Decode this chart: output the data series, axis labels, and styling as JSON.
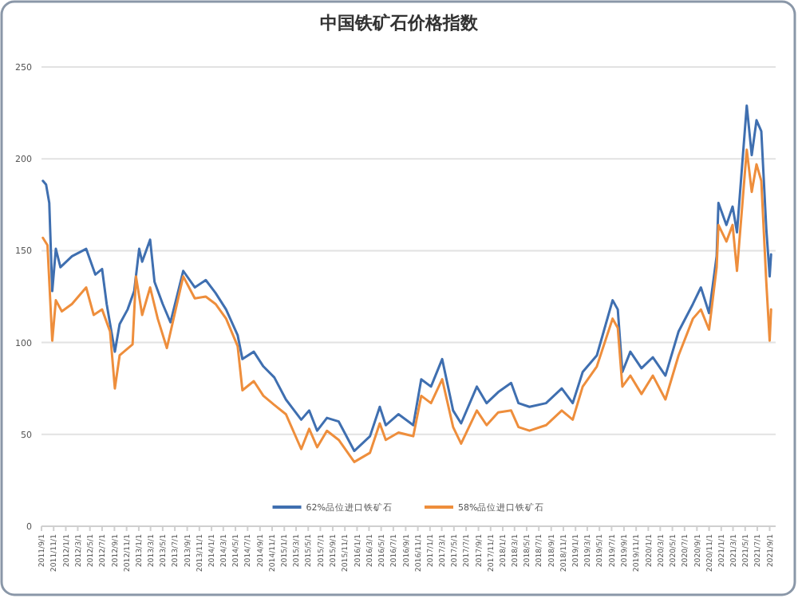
{
  "chart_data": {
    "type": "line",
    "title": "中国铁矿石价格指数",
    "legend": "bottom",
    "grid": "y",
    "marker": "none",
    "line_style": "solid",
    "ylim": [
      0,
      250
    ],
    "yticks": [
      0,
      50,
      100,
      150,
      200,
      250
    ],
    "xlim": [
      "2011-09-01",
      "2021-10-01"
    ],
    "xticks": [
      {
        "value": "2011-09-01",
        "label": "2011/9/1"
      },
      {
        "value": "2011-11-01",
        "label": "2011/11/1"
      },
      {
        "value": "2012-01-01",
        "label": "2012/1/1"
      },
      {
        "value": "2012-03-01",
        "label": "2012/3/1"
      },
      {
        "value": "2012-05-01",
        "label": "2012/5/1"
      },
      {
        "value": "2012-07-01",
        "label": "2012/7/1"
      },
      {
        "value": "2012-09-01",
        "label": "2012/9/1"
      },
      {
        "value": "2012-11-01",
        "label": "2012/11/1"
      },
      {
        "value": "2013-01-01",
        "label": "2013/1/1"
      },
      {
        "value": "2013-03-01",
        "label": "2013/3/1"
      },
      {
        "value": "2013-05-01",
        "label": "2013/5/1"
      },
      {
        "value": "2013-07-01",
        "label": "2013/7/1"
      },
      {
        "value": "2013-09-01",
        "label": "2013/9/1"
      },
      {
        "value": "2013-11-01",
        "label": "2013/11/1"
      },
      {
        "value": "2014-01-01",
        "label": "2014/1/1"
      },
      {
        "value": "2014-03-01",
        "label": "2014/3/1"
      },
      {
        "value": "2014-05-01",
        "label": "2014/5/1"
      },
      {
        "value": "2014-07-01",
        "label": "2014/7/1"
      },
      {
        "value": "2014-09-01",
        "label": "2014/9/1"
      },
      {
        "value": "2014-11-01",
        "label": "2014/11/1"
      },
      {
        "value": "2015-01-01",
        "label": "2015/1/1"
      },
      {
        "value": "2015-03-01",
        "label": "2015/3/1"
      },
      {
        "value": "2015-05-01",
        "label": "2015/5/1"
      },
      {
        "value": "2015-07-01",
        "label": "2015/7/1"
      },
      {
        "value": "2015-09-01",
        "label": "2015/9/1"
      },
      {
        "value": "2015-11-01",
        "label": "2015/11/1"
      },
      {
        "value": "2016-01-01",
        "label": "2016/1/1"
      },
      {
        "value": "2016-03-01",
        "label": "2016/3/1"
      },
      {
        "value": "2016-05-01",
        "label": "2016/5/1"
      },
      {
        "value": "2016-07-01",
        "label": "2016/7/1"
      },
      {
        "value": "2016-09-01",
        "label": "2016/9/1"
      },
      {
        "value": "2016-11-01",
        "label": "2016/11/1"
      },
      {
        "value": "2017-01-01",
        "label": "2017/1/1"
      },
      {
        "value": "2017-03-01",
        "label": "2017/3/1"
      },
      {
        "value": "2017-05-01",
        "label": "2017/5/1"
      },
      {
        "value": "2017-07-01",
        "label": "2017/7/1"
      },
      {
        "value": "2017-09-01",
        "label": "2017/9/1"
      },
      {
        "value": "2017-11-01",
        "label": "2017/11/1"
      },
      {
        "value": "2018-01-01",
        "label": "2018/1/1"
      },
      {
        "value": "2018-03-01",
        "label": "2018/3/1"
      },
      {
        "value": "2018-05-01",
        "label": "2018/5/1"
      },
      {
        "value": "2018-07-01",
        "label": "2018/7/1"
      },
      {
        "value": "2018-09-01",
        "label": "2018/9/1"
      },
      {
        "value": "2018-11-01",
        "label": "2018/11/1"
      },
      {
        "value": "2019-01-01",
        "label": "2019/1/1"
      },
      {
        "value": "2019-03-01",
        "label": "2019/3/1"
      },
      {
        "value": "2019-05-01",
        "label": "2019/5/1"
      },
      {
        "value": "2019-07-01",
        "label": "2019/7/1"
      },
      {
        "value": "2019-09-01",
        "label": "2019/9/1"
      },
      {
        "value": "2019-11-01",
        "label": "2019/11/1"
      },
      {
        "value": "2020-01-01",
        "label": "2020/1/1"
      },
      {
        "value": "2020-03-01",
        "label": "2020/3/1"
      },
      {
        "value": "2020-05-01",
        "label": "2020/5/1"
      },
      {
        "value": "2020-07-01",
        "label": "2020/7/1"
      },
      {
        "value": "2020-09-01",
        "label": "2020/9/1"
      },
      {
        "value": "2020-11-01",
        "label": "2020/11/1"
      },
      {
        "value": "2021-01-01",
        "label": "2021/1/1"
      },
      {
        "value": "2021-03-01",
        "label": "2021/3/1"
      },
      {
        "value": "2021-05-01",
        "label": "2021/5/1"
      },
      {
        "value": "2021-07-01",
        "label": "2021/7/1"
      },
      {
        "value": "2021-09-01",
        "label": "2021/9/1"
      }
    ],
    "series": [
      {
        "name": "62%品位进口铁矿石",
        "color": "#3f6fb0",
        "x": [
          "2011-09-08",
          "2011-09-24",
          "2011-10-10",
          "2011-10-25",
          "2011-11-12",
          "2011-12-05",
          "2012-02-01",
          "2012-04-12",
          "2012-05-28",
          "2012-07-01",
          "2012-07-24",
          "2012-09-03",
          "2012-09-27",
          "2012-11-06",
          "2012-12-09",
          "2013-01-03",
          "2013-01-18",
          "2013-02-27",
          "2013-03-21",
          "2013-05-01",
          "2013-06-09",
          "2013-08-12",
          "2013-10-09",
          "2013-12-03",
          "2014-01-21",
          "2014-03-15",
          "2014-05-12",
          "2014-06-05",
          "2014-08-01",
          "2014-09-18",
          "2014-11-12",
          "2015-01-09",
          "2015-03-27",
          "2015-05-06",
          "2015-06-15",
          "2015-08-03",
          "2015-10-01",
          "2015-12-18",
          "2016-03-06",
          "2016-04-24",
          "2016-05-24",
          "2016-07-27",
          "2016-10-09",
          "2016-11-18",
          "2017-01-06",
          "2017-03-03",
          "2017-04-27",
          "2017-06-06",
          "2017-08-24",
          "2017-10-12",
          "2017-12-09",
          "2018-02-12",
          "2018-03-21",
          "2018-05-15",
          "2018-08-06",
          "2018-10-24",
          "2018-12-18",
          "2019-02-06",
          "2019-04-18",
          "2019-07-06",
          "2019-08-01",
          "2019-08-24",
          "2019-10-03",
          "2019-11-28",
          "2020-01-24",
          "2020-03-27",
          "2020-06-01",
          "2020-08-12",
          "2020-09-21",
          "2020-11-01",
          "2020-12-09",
          "2020-12-18",
          "2021-01-27",
          "2021-02-27",
          "2021-03-21",
          "2021-05-09",
          "2021-06-03",
          "2021-06-27",
          "2021-07-21",
          "2021-08-15",
          "2021-09-01",
          "2021-09-08"
        ],
        "values": [
          188,
          186,
          176,
          128,
          151,
          141,
          147,
          151,
          137,
          140,
          121,
          95,
          110,
          118,
          128,
          151,
          144,
          156,
          133,
          121,
          111,
          139,
          130,
          134,
          127,
          118,
          104,
          91,
          95,
          87,
          81,
          69,
          58,
          63,
          52,
          59,
          57,
          41,
          49,
          65,
          55,
          61,
          55,
          80,
          76,
          91,
          63,
          56,
          76,
          67,
          73,
          78,
          67,
          65,
          67,
          75,
          67,
          84,
          93,
          123,
          118,
          84,
          95,
          86,
          92,
          82,
          106,
          121,
          130,
          116,
          147,
          176,
          164,
          174,
          160,
          229,
          202,
          221,
          215,
          162,
          136,
          148
        ]
      },
      {
        "name": "58%品位进口铁矿石",
        "color": "#ee8e3c",
        "x": [
          "2011-09-08",
          "2011-10-01",
          "2011-10-25",
          "2011-11-12",
          "2011-12-12",
          "2012-02-01",
          "2012-04-12",
          "2012-05-20",
          "2012-07-01",
          "2012-08-10",
          "2012-09-03",
          "2012-09-27",
          "2012-12-01",
          "2012-12-18",
          "2013-01-18",
          "2013-02-27",
          "2013-04-06",
          "2013-05-22",
          "2013-08-12",
          "2013-10-09",
          "2013-12-03",
          "2014-01-21",
          "2014-03-15",
          "2014-05-12",
          "2014-06-05",
          "2014-08-01",
          "2014-09-18",
          "2014-11-12",
          "2015-01-09",
          "2015-03-27",
          "2015-05-06",
          "2015-06-15",
          "2015-08-03",
          "2015-10-01",
          "2015-12-18",
          "2016-03-06",
          "2016-04-24",
          "2016-05-24",
          "2016-07-27",
          "2016-10-09",
          "2016-11-18",
          "2017-01-06",
          "2017-03-03",
          "2017-04-27",
          "2017-06-06",
          "2017-08-24",
          "2017-10-12",
          "2017-12-09",
          "2018-02-12",
          "2018-03-21",
          "2018-05-15",
          "2018-08-06",
          "2018-10-24",
          "2018-12-18",
          "2019-02-06",
          "2019-04-18",
          "2019-07-06",
          "2019-08-01",
          "2019-08-24",
          "2019-10-03",
          "2019-11-28",
          "2020-01-24",
          "2020-03-27",
          "2020-06-01",
          "2020-08-12",
          "2020-09-21",
          "2020-11-01",
          "2020-12-09",
          "2020-12-18",
          "2021-01-27",
          "2021-02-27",
          "2021-03-21",
          "2021-05-09",
          "2021-06-03",
          "2021-06-27",
          "2021-07-21",
          "2021-08-15",
          "2021-09-01",
          "2021-09-08"
        ],
        "values": [
          157,
          153,
          101,
          123,
          117,
          121,
          130,
          115,
          118,
          106,
          75,
          93,
          99,
          136,
          115,
          130,
          113,
          97,
          136,
          124,
          125,
          121,
          113,
          98,
          74,
          79,
          71,
          66,
          61,
          42,
          53,
          43,
          52,
          47,
          35,
          40,
          56,
          47,
          51,
          49,
          71,
          67,
          80,
          54,
          45,
          63,
          55,
          62,
          63,
          54,
          52,
          55,
          63,
          58,
          76,
          87,
          113,
          108,
          76,
          82,
          72,
          82,
          69,
          93,
          113,
          118,
          107,
          141,
          164,
          155,
          164,
          139,
          205,
          182,
          197,
          188,
          133,
          101,
          118
        ]
      }
    ]
  }
}
